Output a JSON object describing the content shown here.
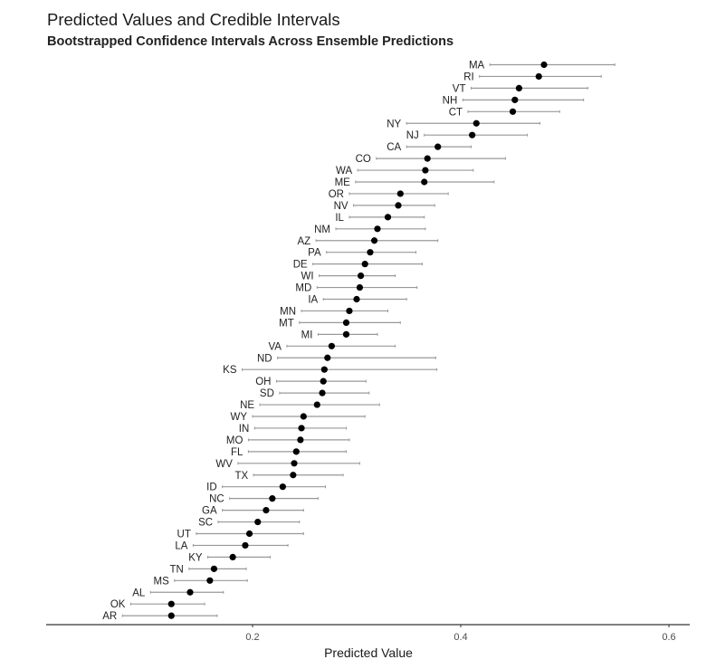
{
  "chart_data": {
    "type": "scatter",
    "title": "Predicted Values and Credible Intervals",
    "subtitle": "Bootstrapped Confidence Intervals Across Ensemble Predictions",
    "xlabel": "Predicted Value",
    "ylabel": "",
    "xlim": [
      0.0,
      0.62
    ],
    "xticks": [
      0.2,
      0.4,
      0.6
    ],
    "xtick_labels": [
      "0.2",
      "0.4",
      "0.6"
    ],
    "grid": false,
    "legend": "none",
    "colors": {
      "point": "#000000",
      "interval": "#999999",
      "axis": "#000000",
      "tick_label": "#4d4d4d"
    },
    "points": [
      {
        "label": "MA",
        "value": 0.48,
        "lower": 0.428,
        "upper": 0.548
      },
      {
        "label": "RI",
        "value": 0.475,
        "lower": 0.418,
        "upper": 0.535
      },
      {
        "label": "VT",
        "value": 0.456,
        "lower": 0.41,
        "upper": 0.522
      },
      {
        "label": "NH",
        "value": 0.452,
        "lower": 0.402,
        "upper": 0.518
      },
      {
        "label": "CT",
        "value": 0.45,
        "lower": 0.407,
        "upper": 0.495
      },
      {
        "label": "NY",
        "value": 0.415,
        "lower": 0.348,
        "upper": 0.476
      },
      {
        "label": "NJ",
        "value": 0.411,
        "lower": 0.365,
        "upper": 0.464
      },
      {
        "label": "CA",
        "value": 0.378,
        "lower": 0.348,
        "upper": 0.41
      },
      {
        "label": "CO",
        "value": 0.368,
        "lower": 0.319,
        "upper": 0.443
      },
      {
        "label": "WA",
        "value": 0.366,
        "lower": 0.301,
        "upper": 0.412
      },
      {
        "label": "ME",
        "value": 0.365,
        "lower": 0.299,
        "upper": 0.432
      },
      {
        "label": "OR",
        "value": 0.342,
        "lower": 0.293,
        "upper": 0.388
      },
      {
        "label": "NV",
        "value": 0.34,
        "lower": 0.297,
        "upper": 0.375
      },
      {
        "label": "IL",
        "value": 0.33,
        "lower": 0.293,
        "upper": 0.365
      },
      {
        "label": "NM",
        "value": 0.32,
        "lower": 0.28,
        "upper": 0.366
      },
      {
        "label": "AZ",
        "value": 0.317,
        "lower": 0.261,
        "upper": 0.378
      },
      {
        "label": "PA",
        "value": 0.313,
        "lower": 0.271,
        "upper": 0.357
      },
      {
        "label": "DE",
        "value": 0.308,
        "lower": 0.258,
        "upper": 0.363
      },
      {
        "label": "WI",
        "value": 0.304,
        "lower": 0.264,
        "upper": 0.337
      },
      {
        "label": "MD",
        "value": 0.303,
        "lower": 0.262,
        "upper": 0.358
      },
      {
        "label": "IA",
        "value": 0.3,
        "lower": 0.268,
        "upper": 0.348
      },
      {
        "label": "MN",
        "value": 0.293,
        "lower": 0.247,
        "upper": 0.33
      },
      {
        "label": "MT",
        "value": 0.29,
        "lower": 0.245,
        "upper": 0.342
      },
      {
        "label": "MI",
        "value": 0.29,
        "lower": 0.263,
        "upper": 0.32
      },
      {
        "label": "VA",
        "value": 0.276,
        "lower": 0.233,
        "upper": 0.337
      },
      {
        "label": "ND",
        "value": 0.272,
        "lower": 0.224,
        "upper": 0.376
      },
      {
        "label": "KS",
        "value": 0.269,
        "lower": 0.19,
        "upper": 0.377
      },
      {
        "label": "OH",
        "value": 0.268,
        "lower": 0.223,
        "upper": 0.309
      },
      {
        "label": "SD",
        "value": 0.267,
        "lower": 0.226,
        "upper": 0.312
      },
      {
        "label": "NE",
        "value": 0.262,
        "lower": 0.207,
        "upper": 0.322
      },
      {
        "label": "WY",
        "value": 0.249,
        "lower": 0.2,
        "upper": 0.308
      },
      {
        "label": "IN",
        "value": 0.247,
        "lower": 0.202,
        "upper": 0.29
      },
      {
        "label": "MO",
        "value": 0.246,
        "lower": 0.196,
        "upper": 0.293
      },
      {
        "label": "FL",
        "value": 0.242,
        "lower": 0.196,
        "upper": 0.29
      },
      {
        "label": "WV",
        "value": 0.24,
        "lower": 0.186,
        "upper": 0.303
      },
      {
        "label": "TX",
        "value": 0.239,
        "lower": 0.201,
        "upper": 0.287
      },
      {
        "label": "ID",
        "value": 0.229,
        "lower": 0.171,
        "upper": 0.27
      },
      {
        "label": "NC",
        "value": 0.219,
        "lower": 0.178,
        "upper": 0.263
      },
      {
        "label": "GA",
        "value": 0.213,
        "lower": 0.171,
        "upper": 0.249
      },
      {
        "label": "SC",
        "value": 0.205,
        "lower": 0.167,
        "upper": 0.245
      },
      {
        "label": "UT",
        "value": 0.197,
        "lower": 0.146,
        "upper": 0.249
      },
      {
        "label": "LA",
        "value": 0.193,
        "lower": 0.143,
        "upper": 0.234
      },
      {
        "label": "KY",
        "value": 0.181,
        "lower": 0.157,
        "upper": 0.217
      },
      {
        "label": "TN",
        "value": 0.163,
        "lower": 0.139,
        "upper": 0.194
      },
      {
        "label": "MS",
        "value": 0.159,
        "lower": 0.125,
        "upper": 0.195
      },
      {
        "label": "AL",
        "value": 0.14,
        "lower": 0.102,
        "upper": 0.172
      },
      {
        "label": "OK",
        "value": 0.122,
        "lower": 0.083,
        "upper": 0.154
      },
      {
        "label": "AR",
        "value": 0.122,
        "lower": 0.075,
        "upper": 0.166
      }
    ]
  }
}
